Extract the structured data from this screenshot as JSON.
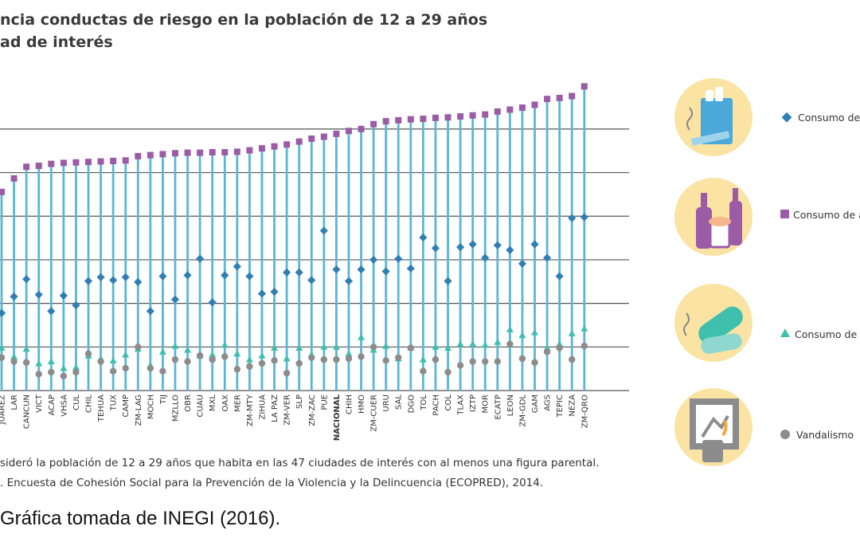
{
  "title_line1": "ncia conductas de riesgo en la población de 12 a 29 años",
  "title_line2": "ad de interés",
  "note_line1": "sideró la población de 12 a 29 años que habita en las 47 ciudades de interés con al menos una figura parental.",
  "note_line2": ". Encuesta de Cohesión Social para la Prevención de la Violencia y la Delincuencia (ECOPRED), 2014.",
  "caption": "Gráfica tomada de INEGI (2016).",
  "legend": {
    "tabaco": "Consumo de",
    "alcohol": "Consumo de a",
    "drogas": "Consumo de d",
    "vandalismo": "Vandalismo"
  },
  "icons": {
    "tabaco": "cigarette-pack-icon",
    "alcohol": "beer-bottles-icon",
    "drogas": "pills-icon",
    "vandalismo": "vandalism-icon"
  },
  "colors": {
    "bar": "#59b7d6",
    "alcohol": "#9b5ba6",
    "tabaco": "#2f7fb4",
    "drogas": "#3fbfae",
    "vandalismo": "#8c8c8c",
    "grid": "#555555",
    "icon_bg": "#fbe3a3"
  },
  "chart_data": {
    "type": "scatter",
    "grid": true,
    "legend_position": "right",
    "categories": [
      "JUAREZ",
      "LAR",
      "CANCUN",
      "VICT",
      "ACAP",
      "VHSA",
      "CUL",
      "CHIL",
      "TEHUA",
      "TUX",
      "CAMP",
      "ZM-LAG",
      "MOCH",
      "TIJ",
      "MZLLO",
      "OBR",
      "CUAU",
      "MXL",
      "OAX",
      "MER",
      "ZM-MTY",
      "ZIHUA",
      "LA PAZ",
      "ZM-VER",
      "SLP",
      "ZM-ZAC",
      "PUE",
      "NACIONAL",
      "CHIH",
      "HMO",
      "ZM-CUER",
      "URU",
      "SAL",
      "DGO",
      "TOL",
      "PACH",
      "COL",
      "TLAX",
      "IZTP",
      "MOR",
      "ECATP",
      "LEON",
      "ZM-GDL",
      "GAM",
      "AGS",
      "TEPIC",
      "NEZA",
      "ZM-QRO"
    ],
    "series": [
      {
        "key": "alcohol",
        "values": [
          41.0,
          43.8,
          46.2,
          46.4,
          46.8,
          47.0,
          47.1,
          47.2,
          47.3,
          47.4,
          47.5,
          48.4,
          48.6,
          48.8,
          49.0,
          49.1,
          49.1,
          49.2,
          49.2,
          49.3,
          49.6,
          50.0,
          50.4,
          50.8,
          51.4,
          52.0,
          52.4,
          53.0,
          53.6,
          54.0,
          55.0,
          55.6,
          55.8,
          56.0,
          56.1,
          56.3,
          56.4,
          56.6,
          56.8,
          57.0,
          57.6,
          58.0,
          58.4,
          59.0,
          60.2,
          60.4,
          60.8,
          62.8
        ]
      },
      {
        "key": "tabaco",
        "values": [
          16.0,
          19.4,
          23.0,
          19.8,
          16.4,
          19.6,
          17.6,
          22.6,
          23.4,
          22.8,
          23.4,
          22.4,
          16.4,
          23.6,
          18.8,
          23.8,
          27.2,
          18.2,
          23.8,
          25.6,
          23.6,
          20.0,
          20.4,
          24.4,
          24.4,
          22.8,
          33.0,
          25.0,
          22.6,
          25.0,
          27.0,
          24.6,
          27.2,
          25.2,
          31.6,
          29.4,
          22.6,
          29.6,
          30.2,
          27.4,
          30.0,
          29.0,
          26.2,
          30.2,
          27.4,
          23.6,
          35.6,
          35.8
        ]
      },
      {
        "key": "drogas",
        "values": [
          8.8,
          7.0,
          8.6,
          5.6,
          6.0,
          4.6,
          4.8,
          7.2,
          6.6,
          6.2,
          7.4,
          8.6,
          5.2,
          8.0,
          9.2,
          8.4,
          7.2,
          7.4,
          9.4,
          7.6,
          6.4,
          7.2,
          8.8,
          6.6,
          8.8,
          7.4,
          9.0,
          9.0,
          7.6,
          11.0,
          8.4,
          9.2,
          6.6,
          8.8,
          6.4,
          9.0,
          8.8,
          9.6,
          9.6,
          9.4,
          10.0,
          12.6,
          11.4,
          12.0,
          8.8,
          9.6,
          11.8,
          12.8
        ]
      },
      {
        "key": "vandalismo",
        "values": [
          6.8,
          6.0,
          5.8,
          3.4,
          3.8,
          3.0,
          3.8,
          7.6,
          6.0,
          4.0,
          4.6,
          9.0,
          4.6,
          4.0,
          6.4,
          6.0,
          7.2,
          6.4,
          7.0,
          4.4,
          5.0,
          5.6,
          6.2,
          3.6,
          5.6,
          6.8,
          6.4,
          6.4,
          6.6,
          7.0,
          9.0,
          6.2,
          6.8,
          8.8,
          4.0,
          6.4,
          3.8,
          5.2,
          6.0,
          6.0,
          6.0,
          9.6,
          6.6,
          5.8,
          8.0,
          8.8,
          6.4,
          9.2
        ]
      }
    ],
    "ylim": [
      0,
      65
    ]
  }
}
